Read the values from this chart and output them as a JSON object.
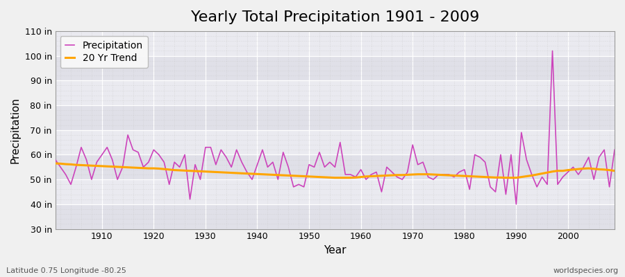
{
  "title": "Yearly Total Precipitation 1901 - 2009",
  "xlabel": "Year",
  "ylabel": "Precipitation",
  "subtitle": "Latitude 0.75 Longitude -80.25",
  "watermark": "worldspecies.org",
  "ylim": [
    30,
    110
  ],
  "yticks": [
    30,
    40,
    50,
    60,
    70,
    80,
    90,
    100,
    110
  ],
  "ytick_labels": [
    "30 in",
    "40 in",
    "50 in",
    "60 in",
    "70 in",
    "80 in",
    "90 in",
    "100 in",
    "110 in"
  ],
  "xticks": [
    1910,
    1920,
    1930,
    1940,
    1950,
    1960,
    1970,
    1980,
    1990,
    2000
  ],
  "years": [
    1901,
    1902,
    1903,
    1904,
    1905,
    1906,
    1907,
    1908,
    1909,
    1910,
    1911,
    1912,
    1913,
    1914,
    1915,
    1916,
    1917,
    1918,
    1919,
    1920,
    1921,
    1922,
    1923,
    1924,
    1925,
    1926,
    1927,
    1928,
    1929,
    1930,
    1931,
    1932,
    1933,
    1934,
    1935,
    1936,
    1937,
    1938,
    1939,
    1940,
    1941,
    1942,
    1943,
    1944,
    1945,
    1946,
    1947,
    1948,
    1949,
    1950,
    1951,
    1952,
    1953,
    1954,
    1955,
    1956,
    1957,
    1958,
    1959,
    1960,
    1961,
    1962,
    1963,
    1964,
    1965,
    1966,
    1967,
    1968,
    1969,
    1970,
    1971,
    1972,
    1973,
    1974,
    1975,
    1976,
    1977,
    1978,
    1979,
    1980,
    1981,
    1982,
    1983,
    1984,
    1985,
    1986,
    1987,
    1988,
    1989,
    1990,
    1991,
    1992,
    1993,
    1994,
    1995,
    1996,
    1997,
    1998,
    1999,
    2000,
    2001,
    2002,
    2003,
    2004,
    2005,
    2006,
    2007,
    2008,
    2009
  ],
  "precipitation": [
    58,
    55,
    52,
    48,
    55,
    63,
    58,
    50,
    57,
    60,
    63,
    58,
    50,
    55,
    68,
    62,
    61,
    55,
    57,
    62,
    60,
    57,
    48,
    57,
    55,
    60,
    42,
    56,
    50,
    63,
    63,
    56,
    62,
    59,
    55,
    62,
    57,
    53,
    50,
    56,
    62,
    55,
    57,
    50,
    61,
    55,
    47,
    48,
    47,
    56,
    55,
    61,
    55,
    57,
    55,
    65,
    52,
    52,
    51,
    54,
    50,
    52,
    53,
    45,
    55,
    53,
    51,
    50,
    53,
    64,
    56,
    57,
    51,
    50,
    52,
    52,
    52,
    51,
    53,
    54,
    46,
    60,
    59,
    57,
    47,
    45,
    60,
    44,
    60,
    40,
    69,
    58,
    52,
    47,
    51,
    48,
    102,
    48,
    51,
    53,
    55,
    52,
    55,
    59,
    50,
    59,
    62,
    47,
    62
  ],
  "trend": [
    56.5,
    56.4,
    56.2,
    56.1,
    55.9,
    55.8,
    55.7,
    55.6,
    55.5,
    55.4,
    55.3,
    55.2,
    55.1,
    55.0,
    54.9,
    54.8,
    54.7,
    54.6,
    54.5,
    54.5,
    54.4,
    54.2,
    54.0,
    53.8,
    53.7,
    53.6,
    53.5,
    53.4,
    53.3,
    53.2,
    53.1,
    53.0,
    52.9,
    52.8,
    52.7,
    52.6,
    52.5,
    52.4,
    52.3,
    52.2,
    52.1,
    52.0,
    51.9,
    51.8,
    51.7,
    51.6,
    51.5,
    51.4,
    51.3,
    51.2,
    51.1,
    51.0,
    50.9,
    50.8,
    50.7,
    50.7,
    50.7,
    50.7,
    50.8,
    51.0,
    51.2,
    51.3,
    51.4,
    51.5,
    51.6,
    51.7,
    51.8,
    51.8,
    51.9,
    52.0,
    52.1,
    52.1,
    52.1,
    52.0,
    51.9,
    51.8,
    51.7,
    51.6,
    51.5,
    51.4,
    51.3,
    51.2,
    51.1,
    51.0,
    50.9,
    50.8,
    50.8,
    50.7,
    50.7,
    50.7,
    51.0,
    51.3,
    51.6,
    52.0,
    52.4,
    52.8,
    53.2,
    53.5,
    53.5,
    53.8,
    54.0,
    54.2,
    54.4,
    54.5,
    54.3,
    54.1,
    54.0,
    53.8,
    53.5
  ],
  "precip_color": "#CC44BB",
  "trend_color": "#FFA500",
  "bg_color": "#f0f0f0",
  "band_color_dark": "#e0e0e8",
  "band_color_light": "#eaeaf0",
  "grid_color": "#ffffff",
  "title_fontsize": 16,
  "axis_label_fontsize": 11,
  "tick_fontsize": 9,
  "legend_fontsize": 10
}
